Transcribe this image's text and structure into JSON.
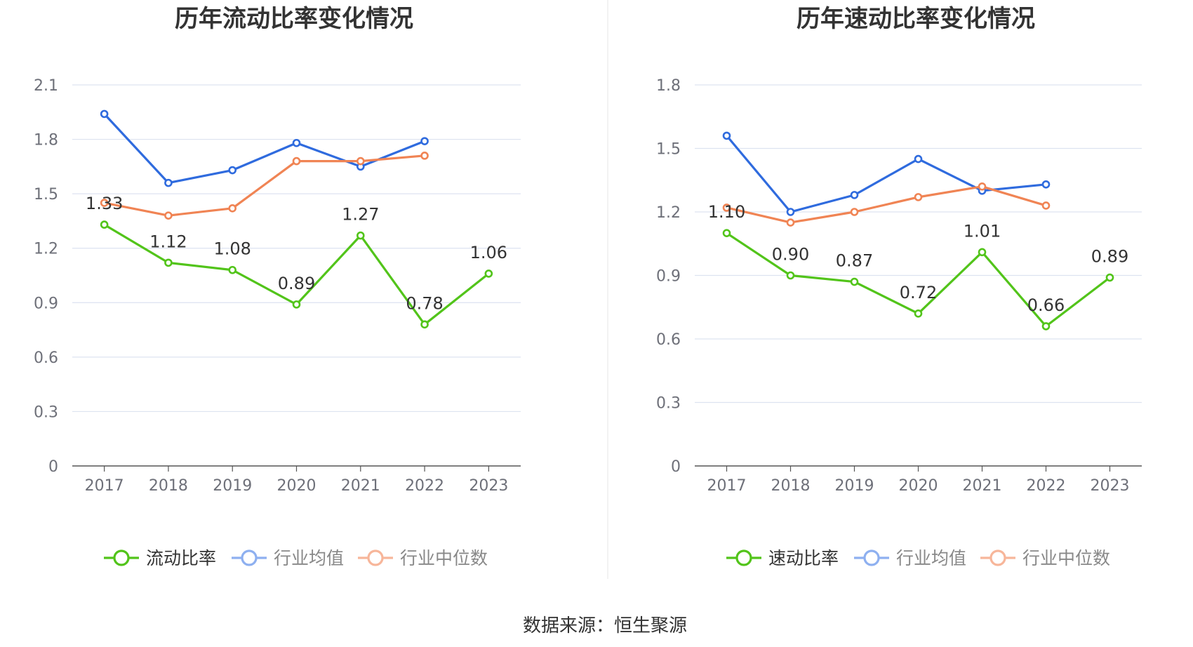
{
  "colors": {
    "primary": "#52c41a",
    "average": "#2f6bde",
    "median": "#f08454",
    "legend_average": "#8eb0f0",
    "legend_median": "#f7b69a",
    "grid": "#dde3f0",
    "axis": "#555555",
    "title": "#333333",
    "tick": "#6e7079",
    "legend_text_active": "#333333",
    "legend_text_muted": "#888888",
    "divider": "#eeeeee"
  },
  "source": {
    "text": "数据来源：恒生聚源"
  },
  "chart_data": [
    {
      "type": "line",
      "title": "历年流动比率变化情况",
      "categories": [
        "2017",
        "2018",
        "2019",
        "2020",
        "2021",
        "2022",
        "2023"
      ],
      "y_ticks": [
        "0",
        "0.3",
        "0.6",
        "0.9",
        "1.2",
        "1.5",
        "1.8",
        "2.1"
      ],
      "ylim": [
        0,
        2.1
      ],
      "grid": true,
      "legend_position": "bottom-center",
      "series": [
        {
          "name": "流动比率",
          "key": "primary",
          "values": [
            1.33,
            1.12,
            1.08,
            0.89,
            1.27,
            0.78,
            1.06
          ],
          "labels": [
            "1.33",
            "1.12",
            "1.08",
            "0.89",
            "1.27",
            "0.78",
            "1.06"
          ]
        },
        {
          "name": "行业均值",
          "key": "average",
          "values": [
            1.94,
            1.56,
            1.63,
            1.78,
            1.65,
            1.79,
            null
          ]
        },
        {
          "name": "行业中位数",
          "key": "median",
          "values": [
            1.45,
            1.38,
            1.42,
            1.68,
            1.68,
            1.71,
            null
          ]
        }
      ]
    },
    {
      "type": "line",
      "title": "历年速动比率变化情况",
      "categories": [
        "2017",
        "2018",
        "2019",
        "2020",
        "2021",
        "2022",
        "2023"
      ],
      "y_ticks": [
        "0",
        "0.3",
        "0.6",
        "0.9",
        "1.2",
        "1.5",
        "1.8"
      ],
      "ylim": [
        0,
        1.8
      ],
      "grid": true,
      "legend_position": "bottom-center",
      "series": [
        {
          "name": "速动比率",
          "key": "primary",
          "values": [
            1.1,
            0.9,
            0.87,
            0.72,
            1.01,
            0.66,
            0.89
          ],
          "labels": [
            "1.10",
            "0.90",
            "0.87",
            "0.72",
            "1.01",
            "0.66",
            "0.89"
          ]
        },
        {
          "name": "行业均值",
          "key": "average",
          "values": [
            1.56,
            1.2,
            1.28,
            1.45,
            1.3,
            1.33,
            null
          ]
        },
        {
          "name": "行业中位数",
          "key": "median",
          "values": [
            1.22,
            1.15,
            1.2,
            1.27,
            1.32,
            1.23,
            null
          ]
        }
      ]
    }
  ]
}
